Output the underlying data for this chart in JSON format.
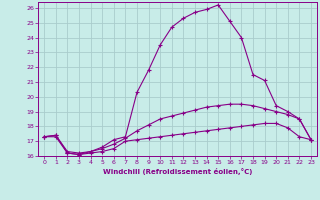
{
  "xlabel": "Windchill (Refroidissement éolien,°C)",
  "xlim": [
    -0.5,
    23.5
  ],
  "ylim": [
    16,
    26.4
  ],
  "yticks": [
    16,
    17,
    18,
    19,
    20,
    21,
    22,
    23,
    24,
    25,
    26
  ],
  "xticks": [
    0,
    1,
    2,
    3,
    4,
    5,
    6,
    7,
    8,
    9,
    10,
    11,
    12,
    13,
    14,
    15,
    16,
    17,
    18,
    19,
    20,
    21,
    22,
    23
  ],
  "bg_color": "#c8ece8",
  "line_color": "#880088",
  "grid_color": "#aacccc",
  "line1_x": [
    0,
    1,
    2,
    3,
    4,
    5,
    6,
    7,
    8,
    9,
    10,
    11,
    12,
    13,
    14,
    15,
    16,
    17,
    18,
    19,
    20,
    21,
    22,
    23
  ],
  "line1_y": [
    17.3,
    17.4,
    16.2,
    16.1,
    16.2,
    16.3,
    16.5,
    17.0,
    17.1,
    17.2,
    17.3,
    17.4,
    17.5,
    17.6,
    17.7,
    17.8,
    17.9,
    18.0,
    18.1,
    18.2,
    18.2,
    17.9,
    17.3,
    17.1
  ],
  "line2_x": [
    0,
    1,
    2,
    3,
    4,
    5,
    6,
    7,
    8,
    9,
    10,
    11,
    12,
    13,
    14,
    15,
    16,
    17,
    18,
    19,
    20,
    21,
    22,
    23
  ],
  "line2_y": [
    17.3,
    17.4,
    16.3,
    16.2,
    16.3,
    16.5,
    16.8,
    17.2,
    17.7,
    18.1,
    18.5,
    18.7,
    18.9,
    19.1,
    19.3,
    19.4,
    19.5,
    19.5,
    19.4,
    19.2,
    19.0,
    18.8,
    18.5,
    17.1
  ],
  "line3_x": [
    0,
    1,
    2,
    3,
    4,
    5,
    6,
    7,
    8,
    9,
    10,
    11,
    12,
    13,
    14,
    15,
    16,
    17,
    18,
    19,
    20,
    21,
    22,
    23
  ],
  "line3_y": [
    17.3,
    17.3,
    16.2,
    16.1,
    16.3,
    16.6,
    17.1,
    17.3,
    20.3,
    21.8,
    23.5,
    24.7,
    25.3,
    25.7,
    25.9,
    26.2,
    25.1,
    24.0,
    21.5,
    21.1,
    19.4,
    19.0,
    18.5,
    17.1
  ]
}
